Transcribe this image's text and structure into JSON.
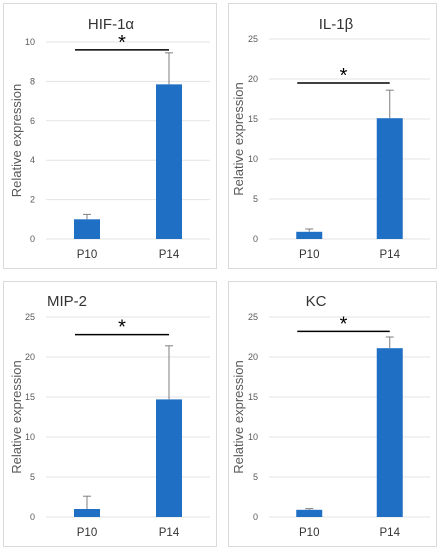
{
  "y_axis_label": "Relative expression",
  "colors": {
    "bar": "#1f6fc5",
    "grid": "#e3e3e3",
    "error": "#7f7f7f"
  },
  "chart_data": [
    {
      "type": "bar",
      "title": "HIF-1α",
      "categories": [
        "P10",
        "P14"
      ],
      "values": [
        1.0,
        7.85
      ],
      "error": [
        0.25,
        1.6
      ],
      "ylim": [
        0,
        10
      ],
      "yticks": [
        0,
        2,
        4,
        6,
        8,
        10
      ],
      "ylabel": "Relative expression",
      "significance": "*"
    },
    {
      "type": "bar",
      "title": "IL-1β",
      "categories": [
        "P10",
        "P14"
      ],
      "values": [
        0.9,
        15.1
      ],
      "error": [
        0.35,
        3.5
      ],
      "ylim": [
        0,
        25
      ],
      "yticks": [
        0,
        5,
        10,
        15,
        20,
        25
      ],
      "ylabel": "Relative expression",
      "significance": "*"
    },
    {
      "type": "bar",
      "title": "MIP-2",
      "categories": [
        "P10",
        "P14"
      ],
      "values": [
        1.0,
        14.7
      ],
      "error": [
        1.6,
        6.7
      ],
      "ylim": [
        0,
        25
      ],
      "yticks": [
        0,
        5,
        10,
        15,
        20,
        25
      ],
      "ylabel": "Relative expression",
      "significance": "*"
    },
    {
      "type": "bar",
      "title": "KC",
      "categories": [
        "P10",
        "P14"
      ],
      "values": [
        0.9,
        21.1
      ],
      "error": [
        0.15,
        1.4
      ],
      "ylim": [
        0,
        25
      ],
      "yticks": [
        0,
        5,
        10,
        15,
        20,
        25
      ],
      "ylabel": "Relative expression",
      "significance": "*"
    }
  ]
}
